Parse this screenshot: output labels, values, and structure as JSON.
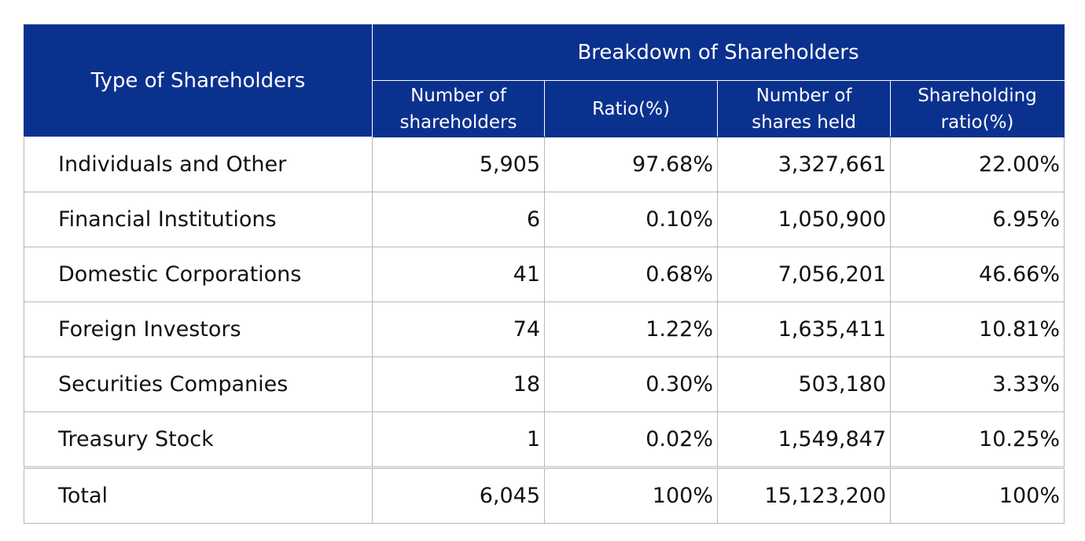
{
  "table": {
    "type_header": "Type of Shareholders",
    "group_header": "Breakdown of Shareholders",
    "columns": [
      {
        "line1": "Number of",
        "line2": "shareholders"
      },
      {
        "line1": "Ratio(%)",
        "line2": ""
      },
      {
        "line1": "Number of",
        "line2": "shares held"
      },
      {
        "line1": "Shareholding",
        "line2": "ratio(%)"
      }
    ],
    "rows": [
      {
        "type": "Individuals and Other",
        "shareholders": "5,905",
        "ratio": "97.68%",
        "shares": "3,327,661",
        "share_ratio": "22.00%"
      },
      {
        "type": "Financial Institutions",
        "shareholders": "6",
        "ratio": "0.10%",
        "shares": "1,050,900",
        "share_ratio": "6.95%"
      },
      {
        "type": "Domestic Corporations",
        "shareholders": "41",
        "ratio": "0.68%",
        "shares": "7,056,201",
        "share_ratio": "46.66%"
      },
      {
        "type": "Foreign Investors",
        "shareholders": "74",
        "ratio": "1.22%",
        "shares": "1,635,411",
        "share_ratio": "10.81%"
      },
      {
        "type": "Securities Companies",
        "shareholders": "18",
        "ratio": "0.30%",
        "shares": "503,180",
        "share_ratio": "3.33%"
      },
      {
        "type": "Treasury Stock",
        "shareholders": "1",
        "ratio": "0.02%",
        "shares": "1,549,847",
        "share_ratio": "10.25%"
      }
    ],
    "total": {
      "type": "Total",
      "shareholders": "6,045",
      "ratio": "100%",
      "shares": "15,123,200",
      "share_ratio": "100%"
    }
  },
  "colors": {
    "header_bg": "#0b318f",
    "header_text": "#ffffff",
    "border": "#b7b7b7"
  }
}
